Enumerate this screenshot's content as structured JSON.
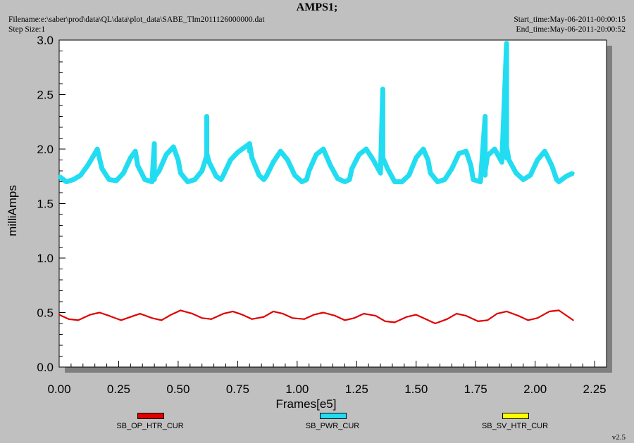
{
  "header": {
    "title": "AMPS1;",
    "filename": "Filename:e:\\saber\\prod\\data\\QL\\data\\plot_data\\SABE_Tlm2011126000000.dat",
    "step_size": "Step Size:1",
    "start_time": "Start_time:May-06-2011-00:00:15",
    "end_time": "End_time:May-06-2011-20:00:52"
  },
  "version": "v2.5",
  "colors": {
    "background": "#c0c0c0",
    "plot_area": "#ffffff",
    "op_htr": "#e00000",
    "pwr": "#22ddf2",
    "sv_htr": "#ffff00"
  },
  "chart_data": {
    "type": "line",
    "xlabel": "Frames[e5]",
    "ylabel": "milliAmps",
    "xlim": [
      0,
      2.3
    ],
    "ylim": [
      0,
      3.0
    ],
    "x_ticks": [
      "0.00",
      "0.25",
      "0.50",
      "0.75",
      "1.00",
      "1.25",
      "1.50",
      "1.75",
      "2.00",
      "2.25"
    ],
    "y_ticks": [
      "0.0",
      "0.5",
      "1.0",
      "1.5",
      "2.0",
      "2.5",
      "3.0"
    ],
    "grid": false,
    "legend_position": "bottom",
    "series": [
      {
        "name": "SB_OP_HTR_CUR",
        "color": "#e00000",
        "x": [
          0.0,
          0.04,
          0.08,
          0.13,
          0.17,
          0.21,
          0.26,
          0.3,
          0.34,
          0.39,
          0.43,
          0.47,
          0.51,
          0.56,
          0.6,
          0.64,
          0.69,
          0.73,
          0.77,
          0.81,
          0.86,
          0.9,
          0.94,
          0.98,
          1.03,
          1.07,
          1.11,
          1.16,
          1.2,
          1.24,
          1.28,
          1.33,
          1.37,
          1.41,
          1.46,
          1.5,
          1.54,
          1.58,
          1.63,
          1.67,
          1.71,
          1.76,
          1.8,
          1.84,
          1.88,
          1.93,
          1.97,
          2.01,
          2.06,
          2.1,
          2.16
        ],
        "values": [
          0.48,
          0.44,
          0.43,
          0.48,
          0.5,
          0.47,
          0.43,
          0.46,
          0.49,
          0.45,
          0.43,
          0.48,
          0.52,
          0.49,
          0.45,
          0.44,
          0.49,
          0.51,
          0.48,
          0.44,
          0.46,
          0.51,
          0.49,
          0.45,
          0.44,
          0.48,
          0.5,
          0.47,
          0.43,
          0.45,
          0.49,
          0.47,
          0.42,
          0.41,
          0.46,
          0.48,
          0.44,
          0.4,
          0.44,
          0.49,
          0.47,
          0.42,
          0.43,
          0.49,
          0.51,
          0.47,
          0.43,
          0.45,
          0.51,
          0.52,
          0.43
        ]
      },
      {
        "name": "SB_PWR_CUR",
        "color": "#22ddf2",
        "x": [
          0.0,
          0.03,
          0.06,
          0.09,
          0.12,
          0.15,
          0.16,
          0.18,
          0.21,
          0.24,
          0.27,
          0.3,
          0.32,
          0.33,
          0.36,
          0.39,
          0.4,
          0.4,
          0.4,
          0.42,
          0.45,
          0.48,
          0.5,
          0.51,
          0.54,
          0.57,
          0.6,
          0.62,
          0.62,
          0.62,
          0.63,
          0.66,
          0.68,
          0.69,
          0.72,
          0.75,
          0.8,
          0.8,
          0.8,
          0.81,
          0.84,
          0.86,
          0.87,
          0.9,
          0.93,
          0.96,
          0.99,
          1.02,
          1.04,
          1.05,
          1.08,
          1.11,
          1.14,
          1.17,
          1.2,
          1.22,
          1.23,
          1.26,
          1.29,
          1.32,
          1.35,
          1.36,
          1.36,
          1.36,
          1.38,
          1.41,
          1.44,
          1.47,
          1.5,
          1.53,
          1.55,
          1.56,
          1.59,
          1.62,
          1.65,
          1.68,
          1.71,
          1.73,
          1.74,
          1.77,
          1.79,
          1.79,
          1.79,
          1.8,
          1.83,
          1.86,
          1.88,
          1.88,
          1.88,
          1.89,
          1.92,
          1.95,
          1.98,
          2.01,
          2.04,
          2.07,
          2.09,
          2.1,
          2.13,
          2.16
        ],
        "values": [
          1.75,
          1.7,
          1.72,
          1.76,
          1.85,
          1.96,
          2.0,
          1.82,
          1.72,
          1.71,
          1.78,
          1.92,
          1.98,
          1.85,
          1.72,
          1.7,
          2.05,
          1.72,
          1.74,
          1.8,
          1.95,
          2.02,
          1.9,
          1.78,
          1.7,
          1.72,
          1.8,
          1.94,
          2.3,
          1.96,
          1.88,
          1.75,
          1.72,
          1.76,
          1.9,
          1.97,
          2.05,
          1.98,
          2.05,
          1.92,
          1.76,
          1.72,
          1.75,
          1.88,
          1.98,
          1.9,
          1.76,
          1.7,
          1.72,
          1.8,
          1.95,
          2.0,
          1.85,
          1.73,
          1.7,
          1.72,
          1.82,
          1.95,
          2.0,
          1.9,
          1.78,
          2.55,
          1.95,
          1.92,
          1.82,
          1.7,
          1.7,
          1.76,
          1.92,
          2.0,
          1.9,
          1.78,
          1.7,
          1.72,
          1.82,
          1.96,
          1.98,
          1.85,
          1.72,
          1.7,
          2.3,
          1.76,
          1.8,
          1.94,
          2.0,
          1.88,
          2.97,
          1.92,
          2.02,
          1.9,
          1.78,
          1.72,
          1.76,
          1.9,
          1.98,
          1.85,
          1.72,
          1.7,
          1.75,
          1.78
        ]
      },
      {
        "name": "SB_SV_HTR_CUR",
        "color": "#ffff00",
        "x": [],
        "values": []
      }
    ]
  }
}
